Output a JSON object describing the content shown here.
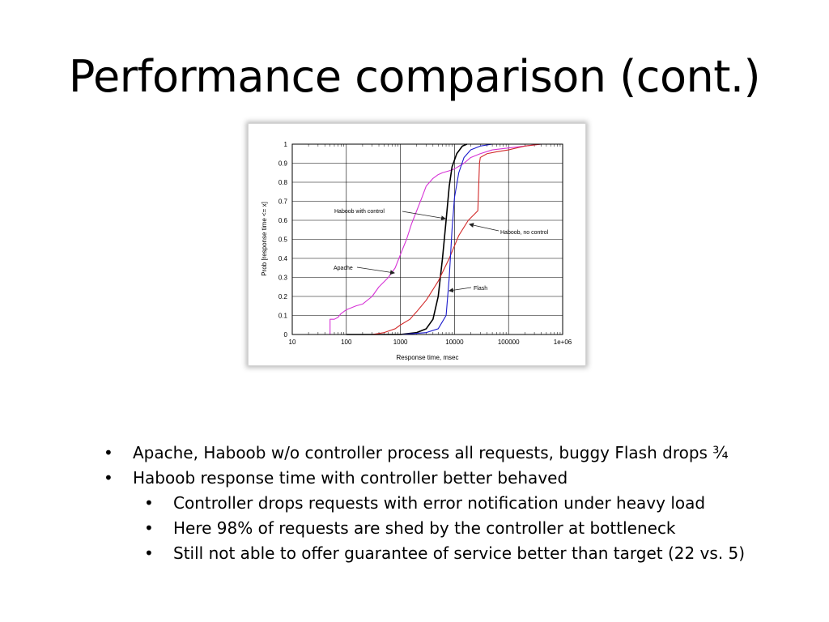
{
  "slide": {
    "title": "Performance comparison (cont.)"
  },
  "bullets": [
    {
      "level": 1,
      "text": "Apache, Haboob w/o controller process all requests, buggy Flash drops ¾"
    },
    {
      "level": 1,
      "text": "Haboob response time with controller better behaved"
    },
    {
      "level": 2,
      "text": "Controller drops requests with error notification under heavy load"
    },
    {
      "level": 2,
      "text": "Here 98% of requests are shed by the controller at bottleneck"
    },
    {
      "level": 2,
      "text": "Still not able to offer guarantee of service better than target (22 vs. 5)"
    }
  ],
  "chart_data": {
    "type": "line",
    "xscale": "log",
    "xlabel": "Response time, msec",
    "ylabel": "Prob [response time <= x]",
    "xlim": [
      10,
      1000000
    ],
    "ylim": [
      0,
      1
    ],
    "grid": true,
    "xticks": [
      {
        "value": 10,
        "label": "10"
      },
      {
        "value": 100,
        "label": "100"
      },
      {
        "value": 1000,
        "label": "1000"
      },
      {
        "value": 10000,
        "label": "10000"
      },
      {
        "value": 100000,
        "label": "100000"
      },
      {
        "value": 1000000,
        "label": "1e+06"
      }
    ],
    "yticks": [
      {
        "value": 0,
        "label": "0"
      },
      {
        "value": 0.1,
        "label": "0.1"
      },
      {
        "value": 0.2,
        "label": "0.2"
      },
      {
        "value": 0.3,
        "label": "0.3"
      },
      {
        "value": 0.4,
        "label": "0.4"
      },
      {
        "value": 0.5,
        "label": "0.5"
      },
      {
        "value": 0.6,
        "label": "0.6"
      },
      {
        "value": 0.7,
        "label": "0.7"
      },
      {
        "value": 0.8,
        "label": "0.8"
      },
      {
        "value": 0.9,
        "label": "0.9"
      },
      {
        "value": 1,
        "label": "1"
      }
    ],
    "series": [
      {
        "name": "Apache",
        "color": "#d633d6",
        "points": [
          [
            50,
            0
          ],
          [
            50,
            0.08
          ],
          [
            60,
            0.08
          ],
          [
            70,
            0.09
          ],
          [
            80,
            0.11
          ],
          [
            100,
            0.13
          ],
          [
            150,
            0.15
          ],
          [
            200,
            0.16
          ],
          [
            300,
            0.2
          ],
          [
            400,
            0.25
          ],
          [
            600,
            0.3
          ],
          [
            800,
            0.35
          ],
          [
            1000,
            0.42
          ],
          [
            1300,
            0.5
          ],
          [
            1600,
            0.58
          ],
          [
            2000,
            0.65
          ],
          [
            2500,
            0.72
          ],
          [
            3000,
            0.78
          ],
          [
            4000,
            0.82
          ],
          [
            5000,
            0.84
          ],
          [
            6000,
            0.85
          ],
          [
            8000,
            0.86
          ],
          [
            10000,
            0.87
          ],
          [
            15000,
            0.9
          ],
          [
            20000,
            0.93
          ],
          [
            30000,
            0.95
          ],
          [
            50000,
            0.97
          ],
          [
            100000,
            0.98
          ],
          [
            200000,
            0.99
          ],
          [
            400000,
            1.0
          ]
        ]
      },
      {
        "name": "Haboob with control",
        "color": "#000000",
        "points": [
          [
            100,
            0
          ],
          [
            1000,
            0
          ],
          [
            2000,
            0.01
          ],
          [
            3000,
            0.03
          ],
          [
            4000,
            0.08
          ],
          [
            5000,
            0.2
          ],
          [
            6000,
            0.4
          ],
          [
            7000,
            0.6
          ],
          [
            8000,
            0.78
          ],
          [
            9000,
            0.88
          ],
          [
            11000,
            0.95
          ],
          [
            14000,
            0.99
          ],
          [
            17000,
            1.0
          ]
        ]
      },
      {
        "name": "Haboob, no control",
        "color": "#d22a2a",
        "points": [
          [
            100,
            0
          ],
          [
            300,
            0
          ],
          [
            500,
            0.01
          ],
          [
            800,
            0.03
          ],
          [
            1000,
            0.05
          ],
          [
            1500,
            0.08
          ],
          [
            2000,
            0.12
          ],
          [
            3000,
            0.18
          ],
          [
            5000,
            0.28
          ],
          [
            8000,
            0.4
          ],
          [
            12000,
            0.52
          ],
          [
            18000,
            0.6
          ],
          [
            27000,
            0.65
          ],
          [
            29000,
            0.9
          ],
          [
            30000,
            0.93
          ],
          [
            40000,
            0.95
          ],
          [
            60000,
            0.96
          ],
          [
            100000,
            0.97
          ],
          [
            200000,
            0.99
          ],
          [
            400000,
            1.0
          ]
        ]
      },
      {
        "name": "Flash",
        "color": "#1a1acc",
        "points": [
          [
            100,
            0
          ],
          [
            1000,
            0
          ],
          [
            3000,
            0.01
          ],
          [
            5000,
            0.03
          ],
          [
            7000,
            0.1
          ],
          [
            8000,
            0.3
          ],
          [
            9000,
            0.55
          ],
          [
            10000,
            0.72
          ],
          [
            12000,
            0.85
          ],
          [
            15000,
            0.93
          ],
          [
            20000,
            0.97
          ],
          [
            30000,
            0.99
          ],
          [
            50000,
            1.0
          ],
          [
            100000,
            1.0
          ]
        ]
      }
    ],
    "annotations": [
      {
        "text": "Haboob with control",
        "series": "Haboob with control"
      },
      {
        "text": "Haboob, no control",
        "series": "Haboob, no control"
      },
      {
        "text": "Apache",
        "series": "Apache"
      },
      {
        "text": "Flash",
        "series": "Flash"
      }
    ]
  }
}
